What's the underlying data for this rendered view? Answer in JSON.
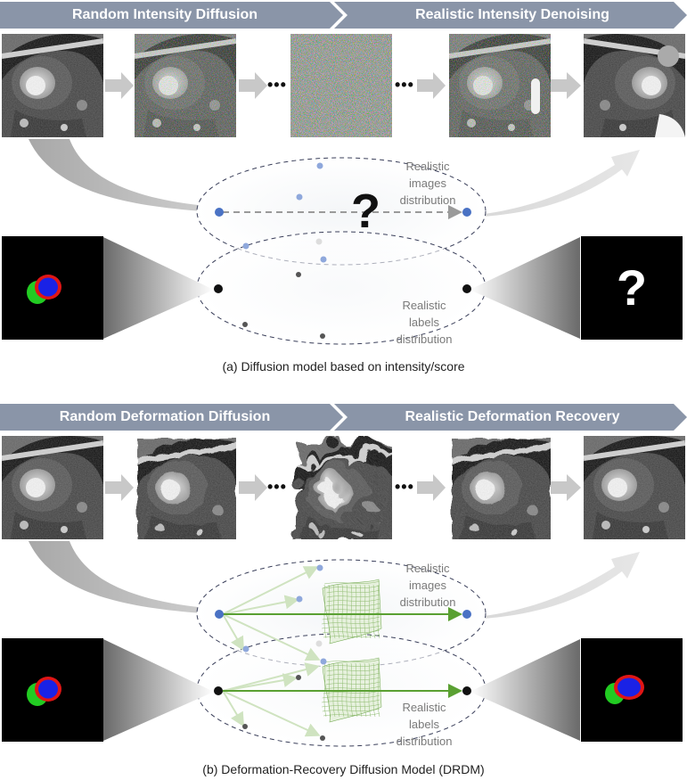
{
  "panel_a": {
    "banner_left": "Random Intensity Diffusion",
    "banner_right": "Realistic Intensity Denoising",
    "ellipsis": "•••",
    "images_distribution": [
      "Realistic",
      "images",
      "distribution"
    ],
    "labels_distribution": [
      "Realistic",
      "labels",
      "distribution"
    ],
    "question_mark": "?",
    "caption": "(a) Diffusion model based on intensity/score"
  },
  "panel_b": {
    "banner_left": "Random Deformation Diffusion",
    "banner_right": "Realistic Deformation Recovery",
    "ellipsis": "•••",
    "images_distribution": [
      "Realistic",
      "images",
      "distribution"
    ],
    "labels_distribution": [
      "Realistic",
      "labels",
      "distribution"
    ],
    "caption": "(b) Deformation-Recovery Diffusion Model (DRDM)"
  },
  "colors": {
    "banner": "#8a95a8",
    "arrow_gray": "#c8c8c8",
    "image_point": "#4a72c4",
    "image_point_light": "#8fa8dc",
    "label_point": "#111111",
    "label_point_gray": "#555555",
    "ellipse_stroke": "#3a3f5a",
    "deform_green": "#5aa032",
    "deform_green_light": "#cfe3c0",
    "mask_green": "#22cc22",
    "mask_red": "#e01515",
    "mask_blue": "#1a22e6"
  }
}
